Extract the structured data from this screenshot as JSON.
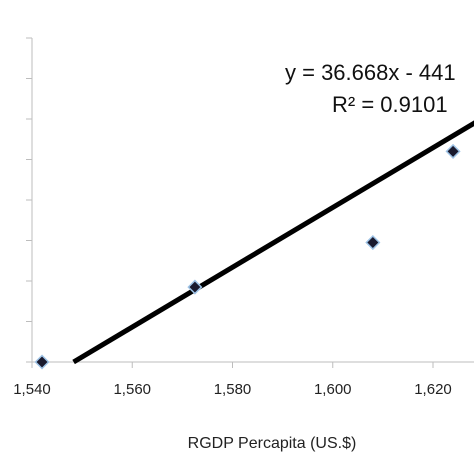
{
  "chart_data": {
    "type": "scatter",
    "xlabel": "RGDP Percapita (US.$)",
    "x_ticks": [
      "1,540",
      "1,560",
      "1,580",
      "1,600",
      "1,620"
    ],
    "x_tick_values": [
      1540,
      1560,
      1580,
      1600,
      1620
    ],
    "xlim": [
      1540,
      1632
    ],
    "ylim": [
      0,
      8
    ],
    "y_tick_count": 9,
    "grid": false,
    "series": [
      {
        "points": [
          {
            "x": 1542,
            "y": 0.0
          },
          {
            "x": 1572.5,
            "y": 1.85
          },
          {
            "x": 1608,
            "y": 2.95
          },
          {
            "x": 1624,
            "y": 5.2
          }
        ],
        "marker": "diamond",
        "marker_color": "#1a1a2e"
      }
    ],
    "trendline": {
      "type": "linear",
      "equation": "y = 36.668x - 441",
      "r_squared": "R² = 0.9101",
      "from": {
        "x": 1548.3,
        "y": 0.0
      },
      "to": {
        "x": 1633,
        "y": 6.25
      },
      "color": "#000000"
    }
  }
}
